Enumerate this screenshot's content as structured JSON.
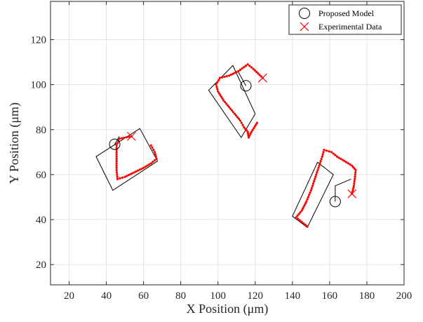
{
  "chart_data": {
    "type": "scatter",
    "xlabel": "X Position (μm)",
    "ylabel": "Y Position (μm)",
    "xlim": [
      10,
      200
    ],
    "ylim": [
      11,
      137
    ],
    "xticks": [
      20,
      40,
      60,
      80,
      100,
      120,
      140,
      160,
      180,
      200
    ],
    "yticks": [
      20,
      40,
      60,
      80,
      100,
      120
    ],
    "grid": true,
    "legend_position": "top-right",
    "series": [
      {
        "name": "Proposed Model",
        "marker": "circle",
        "color": "#000000",
        "points": [
          [
            44.5,
            73.5
          ],
          [
            115,
            99.5
          ],
          [
            163,
            48
          ]
        ]
      },
      {
        "name": "Experimental Data",
        "marker": "x",
        "color": "#ff0000",
        "points": [
          [
            53.5,
            77
          ],
          [
            124,
            103
          ],
          [
            172,
            51.5
          ]
        ]
      }
    ],
    "bodies": [
      {
        "outline": [
          [
            34.5,
            68
          ],
          [
            43.5,
            53
          ],
          [
            67.5,
            66
          ],
          [
            58,
            80.5
          ]
        ],
        "tether": [
          [
            44.5,
            73.5
          ],
          [
            47,
            77
          ]
        ]
      },
      {
        "outline": [
          [
            95,
            97.5
          ],
          [
            108,
            108.5
          ],
          [
            120,
            87
          ],
          [
            112.5,
            76.5
          ]
        ],
        "tether": [
          [
            115,
            99.5
          ],
          [
            111,
            105.5
          ]
        ]
      },
      {
        "outline": [
          [
            140,
            41.5
          ],
          [
            153.5,
            65.5
          ],
          [
            162,
            60
          ],
          [
            148,
            36.5
          ]
        ],
        "tether": [
          [
            163,
            48
          ],
          [
            163,
            55
          ],
          [
            171.5,
            58
          ]
        ]
      }
    ],
    "trajectories": [
      {
        "color": "#ff0000",
        "points": [
          [
            53.5,
            77
          ],
          [
            47,
            76
          ],
          [
            45.5,
            73
          ],
          [
            45.5,
            68
          ],
          [
            45.5,
            62
          ],
          [
            46,
            58
          ],
          [
            50,
            59
          ],
          [
            55,
            61
          ],
          [
            60,
            63
          ],
          [
            64,
            65
          ],
          [
            67,
            67
          ],
          [
            66,
            70
          ],
          [
            64,
            73
          ]
        ]
      },
      {
        "color": "#ff0000",
        "points": [
          [
            124,
            103
          ],
          [
            119,
            107
          ],
          [
            116,
            109
          ],
          [
            111,
            106
          ],
          [
            106,
            104
          ],
          [
            101,
            103
          ],
          [
            99,
            100
          ],
          [
            100,
            97
          ],
          [
            103,
            93
          ],
          [
            106,
            90
          ],
          [
            109,
            87
          ],
          [
            112,
            84
          ],
          [
            114,
            81
          ],
          [
            116,
            79
          ],
          [
            116.5,
            76.5
          ],
          [
            118,
            79
          ],
          [
            121,
            83
          ]
        ]
      },
      {
        "color": "#ff0000",
        "points": [
          [
            172,
            51.5
          ],
          [
            173,
            55
          ],
          [
            173.5,
            58
          ],
          [
            174,
            62
          ],
          [
            172,
            64
          ],
          [
            168,
            66
          ],
          [
            164,
            68
          ],
          [
            161,
            70
          ],
          [
            157,
            71
          ],
          [
            156,
            68
          ],
          [
            154,
            63
          ],
          [
            152,
            58
          ],
          [
            150,
            53
          ],
          [
            147.5,
            48
          ],
          [
            145,
            44
          ],
          [
            142,
            41
          ],
          [
            145,
            39
          ],
          [
            148,
            37
          ]
        ]
      }
    ]
  }
}
